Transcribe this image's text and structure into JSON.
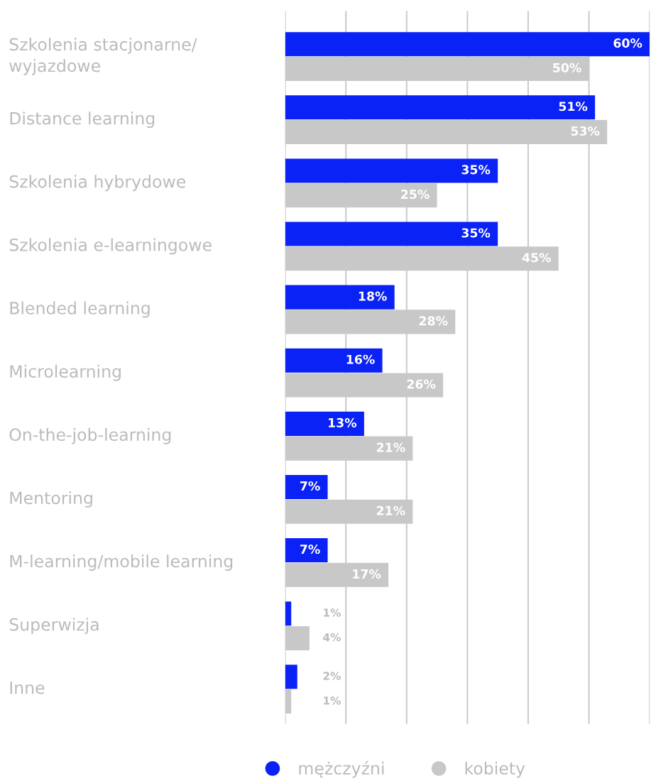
{
  "chart_data": {
    "type": "bar",
    "orientation": "horizontal",
    "categories": [
      "Szkolenia stacjonarne/\nwyjazdowe",
      "Distance learning",
      "Szkolenia hybrydowe",
      "Szkolenia e-learningowe",
      "Blended learning",
      "Microlearning",
      "On-the-job-learning",
      "Mentoring",
      "M-learning/mobile learning",
      "Superwizja",
      "Inne"
    ],
    "series": [
      {
        "name": "mężczyźni",
        "color": "#0a22f5",
        "values": [
          60,
          51,
          35,
          35,
          18,
          16,
          13,
          7,
          7,
          1,
          2
        ],
        "value_labels": [
          "60%",
          "51%",
          "35%",
          "35%",
          "18%",
          "16%",
          "13%",
          "7%",
          "7%",
          "1%",
          "2%"
        ]
      },
      {
        "name": "kobiety",
        "color": "#c8c8c8",
        "values": [
          50,
          53,
          25,
          45,
          28,
          26,
          21,
          21,
          17,
          4,
          1
        ],
        "value_labels": [
          "50%",
          "53%",
          "25%",
          "45%",
          "28%",
          "26%",
          "21%",
          "21%",
          "17%",
          "4%",
          "1%"
        ]
      }
    ],
    "xlim": [
      0,
      60
    ],
    "xticks": [
      {
        "value": 0,
        "label": null
      },
      {
        "value": 10,
        "label": null
      },
      {
        "value": 20,
        "label": null
      },
      {
        "value": 30,
        "label": null
      },
      {
        "value": 40,
        "label": null
      },
      {
        "value": 50,
        "label": null
      },
      {
        "value": 60,
        "label": null
      }
    ],
    "grid": "x",
    "legend": "bottom",
    "marker": "circle"
  }
}
